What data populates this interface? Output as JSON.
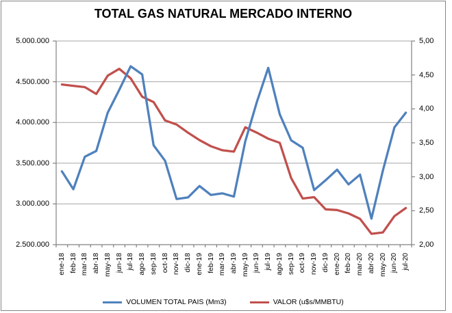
{
  "chart_data": {
    "type": "line",
    "title": "TOTAL GAS NATURAL MERCADO INTERNO",
    "grid": true,
    "legend_position": "bottom",
    "categories": [
      "ene-18",
      "feb-18",
      "mar-18",
      "abr-18",
      "may-18",
      "jun-18",
      "jul-18",
      "ago-18",
      "sep-18",
      "oct-18",
      "nov-18",
      "dic-18",
      "ene-19",
      "feb-19",
      "mar-19",
      "abr-19",
      "may-19",
      "jun-19",
      "jul-19",
      "ago-19",
      "sep-19",
      "oct-19",
      "nov-19",
      "dic-19",
      "ene-20",
      "feb-20",
      "mar-20",
      "abr-20",
      "may-20",
      "jun-20",
      "jul-20"
    ],
    "series": [
      {
        "name": "VOLUMEN TOTAL PAIS (Mm3)",
        "axis": "left",
        "color": "#4F81BD",
        "values": [
          3400000,
          3180000,
          3580000,
          3650000,
          4120000,
          4400000,
          4690000,
          4590000,
          3720000,
          3530000,
          3060000,
          3080000,
          3220000,
          3110000,
          3130000,
          3090000,
          3770000,
          4250000,
          4670000,
          4100000,
          3780000,
          3690000,
          3170000,
          3290000,
          3420000,
          3240000,
          3360000,
          2820000,
          3410000,
          3940000,
          4120000
        ]
      },
      {
        "name": "VALOR (u$s/MMBTU)",
        "axis": "right",
        "color": "#C0504D",
        "values": [
          4.36,
          4.34,
          4.32,
          4.22,
          4.49,
          4.59,
          4.45,
          4.18,
          4.1,
          3.83,
          3.77,
          3.65,
          3.54,
          3.45,
          3.39,
          3.37,
          3.73,
          3.65,
          3.56,
          3.5,
          2.98,
          2.68,
          2.7,
          2.52,
          2.51,
          2.46,
          2.38,
          2.16,
          2.18,
          2.42,
          2.54
        ]
      }
    ],
    "y_left": {
      "min": 2500000,
      "max": 5000000,
      "tick_labels": [
        "5.000.000",
        "4.500.000",
        "4.000.000",
        "3.500.000",
        "3.000.000",
        "2.500.000"
      ]
    },
    "y_right": {
      "min": 2.0,
      "max": 5.0,
      "tick_labels": [
        "5,00",
        "4,50",
        "4,00",
        "3,50",
        "3,00",
        "2,50",
        "2,00"
      ]
    },
    "axis_color": "#808080",
    "grid_color": "#a6a6a6"
  }
}
